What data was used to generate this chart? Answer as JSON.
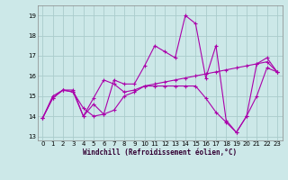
{
  "xlabel": "Windchill (Refroidissement éolien,°C)",
  "bg_color": "#cce8e8",
  "grid_color": "#aacccc",
  "line_color": "#aa00aa",
  "xlim": [
    -0.5,
    23.5
  ],
  "ylim": [
    12.8,
    19.5
  ],
  "yticks": [
    13,
    14,
    15,
    16,
    17,
    18,
    19
  ],
  "xticks": [
    0,
    1,
    2,
    3,
    4,
    5,
    6,
    7,
    8,
    9,
    10,
    11,
    12,
    13,
    14,
    15,
    16,
    17,
    18,
    19,
    20,
    21,
    22,
    23
  ],
  "series": [
    [
      13.9,
      14.9,
      15.3,
      15.2,
      14.0,
      14.6,
      14.1,
      15.8,
      15.6,
      15.6,
      16.5,
      17.5,
      17.2,
      16.9,
      19.0,
      18.6,
      15.9,
      17.5,
      13.8,
      13.2,
      14.0,
      16.6,
      16.9,
      16.2
    ],
    [
      13.9,
      15.0,
      15.3,
      15.3,
      14.0,
      14.9,
      15.8,
      15.6,
      15.2,
      15.3,
      15.5,
      15.6,
      15.7,
      15.8,
      15.9,
      16.0,
      16.1,
      16.2,
      16.3,
      16.4,
      16.5,
      16.6,
      16.7,
      16.2
    ],
    [
      13.9,
      14.9,
      15.3,
      15.2,
      14.4,
      14.0,
      14.1,
      14.3,
      15.0,
      15.2,
      15.5,
      15.5,
      15.5,
      15.5,
      15.5,
      15.5,
      14.9,
      14.2,
      13.7,
      13.2,
      14.0,
      15.0,
      16.4,
      16.2
    ]
  ],
  "linewidth": 0.8,
  "markersize": 3.0,
  "tick_fontsize": 5,
  "xlabel_fontsize": 5.5
}
